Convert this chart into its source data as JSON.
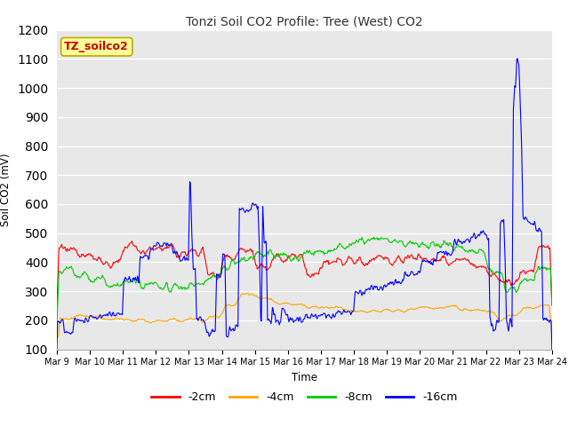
{
  "title": "Tonzi Soil CO2 Profile: Tree (West) CO2",
  "xlabel": "Time",
  "ylabel": "Soil CO2 (mV)",
  "ylim": [
    100,
    1200
  ],
  "yticks": [
    100,
    200,
    300,
    400,
    500,
    600,
    700,
    800,
    900,
    1000,
    1100,
    1200
  ],
  "colors": {
    "2cm": "#ff0000",
    "4cm": "#ffa500",
    "8cm": "#00cc00",
    "16cm": "#0000ff"
  },
  "legend_labels": [
    "-2cm",
    "-4cm",
    "-8cm",
    "-16cm"
  ],
  "bg_color": "#e8e8e8",
  "label_box_color": "#ffff99",
  "label_box_text": "TZ_soilco2",
  "label_box_text_color": "#cc0000",
  "n_points": 720,
  "x_start": 9,
  "x_end": 24,
  "xtick_positions": [
    9,
    10,
    11,
    12,
    13,
    14,
    15,
    16,
    17,
    18,
    19,
    20,
    21,
    22,
    23,
    24
  ],
  "xtick_labels": [
    "Mar 9",
    "Mar 10",
    "Mar 11",
    "Mar 12",
    "Mar 13",
    "Mar 14",
    "Mar 15",
    "Mar 16",
    "Mar 17",
    "Mar 18",
    "Mar 19",
    "Mar 20",
    "Mar 21",
    "Mar 22",
    "Mar 23",
    "Mar 24"
  ]
}
